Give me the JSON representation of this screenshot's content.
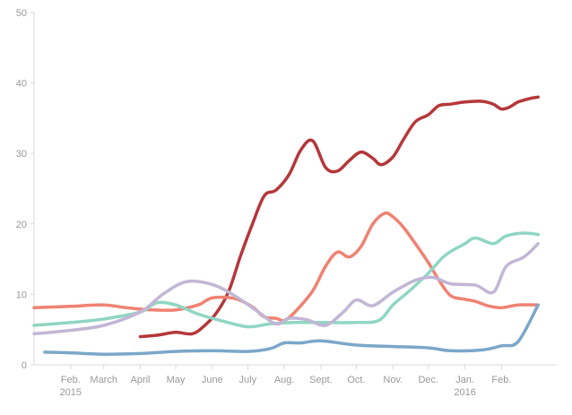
{
  "chart_data": {
    "type": "line",
    "title": "",
    "xlabel": "",
    "ylabel": "",
    "ylim": [
      0,
      50
    ],
    "yticks": [
      0,
      10,
      20,
      30,
      40,
      50
    ],
    "x_range": [
      "2015-01-01",
      "2016-03-18"
    ],
    "x_ticks": [
      {
        "date": "2015-02-01",
        "label": "Feb.",
        "sublabel": "2015"
      },
      {
        "date": "2015-03-01",
        "label": "March",
        "sublabel": ""
      },
      {
        "date": "2015-04-01",
        "label": "April",
        "sublabel": ""
      },
      {
        "date": "2015-05-01",
        "label": "May",
        "sublabel": ""
      },
      {
        "date": "2015-06-01",
        "label": "June",
        "sublabel": ""
      },
      {
        "date": "2015-07-01",
        "label": "July",
        "sublabel": ""
      },
      {
        "date": "2015-08-01",
        "label": "Aug.",
        "sublabel": ""
      },
      {
        "date": "2015-09-01",
        "label": "Sept.",
        "sublabel": ""
      },
      {
        "date": "2015-10-01",
        "label": "Oct.",
        "sublabel": ""
      },
      {
        "date": "2015-11-01",
        "label": "Nov.",
        "sublabel": ""
      },
      {
        "date": "2015-12-01",
        "label": "Dec.",
        "sublabel": ""
      },
      {
        "date": "2016-01-01",
        "label": "Jan.",
        "sublabel": "2016"
      },
      {
        "date": "2016-02-01",
        "label": "Feb.",
        "sublabel": ""
      }
    ],
    "grid": false,
    "legend": "none",
    "series": [
      {
        "color": "#b5373a",
        "points": [
          [
            "2015-04-01",
            4.0
          ],
          [
            "2015-04-15",
            4.2
          ],
          [
            "2015-05-01",
            4.6
          ],
          [
            "2015-05-15",
            4.4
          ],
          [
            "2015-05-25",
            5.5
          ],
          [
            "2015-06-05",
            7.5
          ],
          [
            "2015-06-15",
            10.5
          ],
          [
            "2015-06-25",
            15.5
          ],
          [
            "2015-07-05",
            20.0
          ],
          [
            "2015-07-15",
            24.0
          ],
          [
            "2015-07-25",
            24.8
          ],
          [
            "2015-08-05",
            27.0
          ],
          [
            "2015-08-15",
            30.5
          ],
          [
            "2015-08-25",
            31.8
          ],
          [
            "2015-09-05",
            28.0
          ],
          [
            "2015-09-15",
            27.5
          ],
          [
            "2015-09-25",
            29.0
          ],
          [
            "2015-10-05",
            30.2
          ],
          [
            "2015-10-15",
            29.3
          ],
          [
            "2015-10-22",
            28.4
          ],
          [
            "2015-11-01",
            29.5
          ],
          [
            "2015-11-10",
            32.0
          ],
          [
            "2015-11-20",
            34.5
          ],
          [
            "2015-12-01",
            35.5
          ],
          [
            "2015-12-10",
            36.8
          ],
          [
            "2015-12-20",
            37.0
          ],
          [
            "2016-01-01",
            37.3
          ],
          [
            "2016-01-15",
            37.4
          ],
          [
            "2016-01-25",
            37.0
          ],
          [
            "2016-02-01",
            36.3
          ],
          [
            "2016-02-08",
            36.6
          ],
          [
            "2016-02-15",
            37.3
          ],
          [
            "2016-02-25",
            37.8
          ],
          [
            "2016-03-03",
            38.0
          ]
        ]
      },
      {
        "color": "#ef8272",
        "points": [
          [
            "2015-01-01",
            8.1
          ],
          [
            "2015-02-01",
            8.3
          ],
          [
            "2015-03-01",
            8.5
          ],
          [
            "2015-03-20",
            8.1
          ],
          [
            "2015-04-10",
            7.8
          ],
          [
            "2015-05-01",
            7.8
          ],
          [
            "2015-05-20",
            8.5
          ],
          [
            "2015-06-01",
            9.5
          ],
          [
            "2015-06-20",
            9.4
          ],
          [
            "2015-07-05",
            8.2
          ],
          [
            "2015-07-15",
            6.8
          ],
          [
            "2015-07-25",
            6.6
          ],
          [
            "2015-08-01",
            6.3
          ],
          [
            "2015-08-10",
            7.5
          ],
          [
            "2015-08-25",
            10.5
          ],
          [
            "2015-09-05",
            14.0
          ],
          [
            "2015-09-15",
            16.0
          ],
          [
            "2015-09-25",
            15.3
          ],
          [
            "2015-10-05",
            16.8
          ],
          [
            "2015-10-15",
            20.0
          ],
          [
            "2015-10-25",
            21.5
          ],
          [
            "2015-11-01",
            21.0
          ],
          [
            "2015-11-10",
            19.5
          ],
          [
            "2015-11-20",
            17.2
          ],
          [
            "2015-12-01",
            14.5
          ],
          [
            "2015-12-10",
            12.0
          ],
          [
            "2015-12-20",
            9.8
          ],
          [
            "2016-01-01",
            9.3
          ],
          [
            "2016-01-10",
            9.0
          ],
          [
            "2016-01-20",
            8.4
          ],
          [
            "2016-02-01",
            8.1
          ],
          [
            "2016-02-15",
            8.5
          ],
          [
            "2016-03-03",
            8.5
          ]
        ]
      },
      {
        "color": "#8fd6c3",
        "points": [
          [
            "2015-01-01",
            5.6
          ],
          [
            "2015-02-01",
            6.0
          ],
          [
            "2015-03-01",
            6.5
          ],
          [
            "2015-04-01",
            7.5
          ],
          [
            "2015-04-15",
            8.8
          ],
          [
            "2015-05-01",
            8.5
          ],
          [
            "2015-05-20",
            7.2
          ],
          [
            "2015-06-10",
            6.2
          ],
          [
            "2015-07-01",
            5.4
          ],
          [
            "2015-07-20",
            5.8
          ],
          [
            "2015-08-10",
            6.0
          ],
          [
            "2015-09-01",
            6.0
          ],
          [
            "2015-10-01",
            6.0
          ],
          [
            "2015-10-20",
            6.3
          ],
          [
            "2015-11-01",
            8.5
          ],
          [
            "2015-11-15",
            10.5
          ],
          [
            "2015-12-01",
            13.0
          ],
          [
            "2015-12-15",
            15.5
          ],
          [
            "2016-01-01",
            17.2
          ],
          [
            "2016-01-10",
            18.0
          ],
          [
            "2016-01-25",
            17.2
          ],
          [
            "2016-02-05",
            18.3
          ],
          [
            "2016-02-20",
            18.7
          ],
          [
            "2016-03-03",
            18.5
          ]
        ]
      },
      {
        "color": "#c2b6d6",
        "points": [
          [
            "2015-01-01",
            4.4
          ],
          [
            "2015-02-01",
            4.9
          ],
          [
            "2015-03-01",
            5.6
          ],
          [
            "2015-04-01",
            7.5
          ],
          [
            "2015-04-20",
            10.0
          ],
          [
            "2015-05-10",
            11.8
          ],
          [
            "2015-06-01",
            11.4
          ],
          [
            "2015-06-20",
            9.8
          ],
          [
            "2015-07-10",
            7.5
          ],
          [
            "2015-07-25",
            5.8
          ],
          [
            "2015-08-05",
            6.6
          ],
          [
            "2015-08-20",
            6.4
          ],
          [
            "2015-09-05",
            5.6
          ],
          [
            "2015-09-20",
            7.5
          ],
          [
            "2015-10-01",
            9.2
          ],
          [
            "2015-10-15",
            8.4
          ],
          [
            "2015-11-01",
            10.3
          ],
          [
            "2015-11-20",
            12.0
          ],
          [
            "2015-12-05",
            12.4
          ],
          [
            "2015-12-20",
            11.5
          ],
          [
            "2016-01-10",
            11.3
          ],
          [
            "2016-01-25",
            10.3
          ],
          [
            "2016-02-05",
            14.0
          ],
          [
            "2016-02-20",
            15.3
          ],
          [
            "2016-03-03",
            17.2
          ]
        ]
      },
      {
        "color": "#7ba7c9",
        "points": [
          [
            "2015-01-10",
            1.8
          ],
          [
            "2015-02-01",
            1.7
          ],
          [
            "2015-03-01",
            1.5
          ],
          [
            "2015-04-01",
            1.6
          ],
          [
            "2015-05-01",
            1.9
          ],
          [
            "2015-06-01",
            2.0
          ],
          [
            "2015-07-01",
            1.9
          ],
          [
            "2015-07-20",
            2.3
          ],
          [
            "2015-08-01",
            3.1
          ],
          [
            "2015-08-15",
            3.1
          ],
          [
            "2015-09-01",
            3.4
          ],
          [
            "2015-10-01",
            2.8
          ],
          [
            "2015-11-01",
            2.6
          ],
          [
            "2015-12-01",
            2.4
          ],
          [
            "2015-12-20",
            2.0
          ],
          [
            "2016-01-15",
            2.1
          ],
          [
            "2016-02-01",
            2.7
          ],
          [
            "2016-02-15",
            3.3
          ],
          [
            "2016-03-03",
            8.5
          ]
        ]
      }
    ]
  }
}
